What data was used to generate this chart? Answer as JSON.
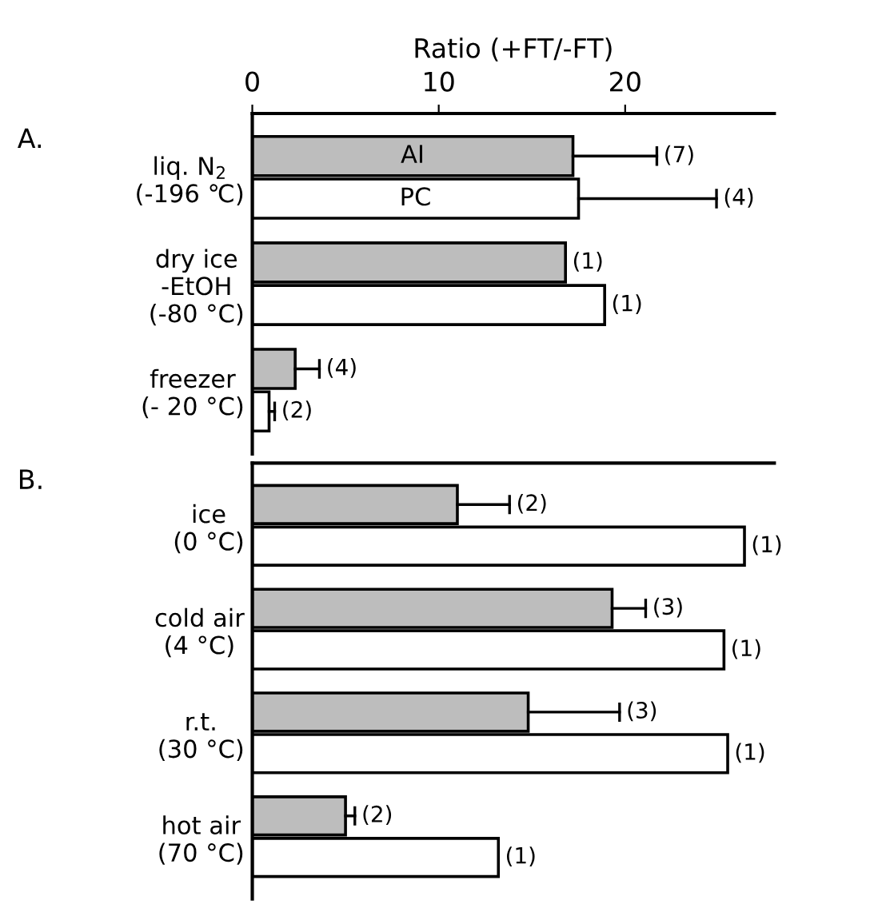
{
  "chart_data": [
    {
      "type": "bar",
      "orientation": "horizontal",
      "title": "A.",
      "xlabel": "Ratio (+FT/-FT)",
      "categories": [
        "liq. N$_{2}$\n(-196 ℃)",
        "dry ice\n-EtOH\n(-80 °C)",
        "freezer\n(- 20 °C)"
      ],
      "series": [
        {
          "name": "AI",
          "color": "#bdbdbd",
          "values": [
            17.2,
            16.8,
            2.3
          ],
          "errors": [
            [
              17.2,
              21.7
            ],
            null,
            [
              2.3,
              3.6
            ]
          ]
        },
        {
          "name": "PC",
          "color": "#ffffff",
          "values": [
            17.5,
            18.9,
            0.9
          ],
          "errors": [
            [
              17.5,
              24.9
            ],
            null,
            [
              0.9,
              1.2
            ]
          ]
        }
      ],
      "annotations": [
        "(7)",
        "(4)",
        "(1)",
        "(1)",
        "(4)",
        "(2)"
      ],
      "xlim": [
        0,
        28
      ],
      "xticks": [
        0,
        10,
        20
      ],
      "grid": false,
      "legend": false
    },
    {
      "type": "bar",
      "orientation": "horizontal",
      "title": "B.",
      "categories": [
        "ice\n(0 °C)",
        "cold air\n(4 °C)",
        "r.t.\n(30 °C)",
        "hot air\n(70 °C)"
      ],
      "series": [
        {
          "color": "#bdbdbd",
          "values": [
            11.0,
            19.3,
            14.8,
            5.0
          ],
          "errors": [
            [
              11.0,
              13.8
            ],
            [
              19.3,
              21.1
            ],
            [
              14.8,
              19.7
            ],
            [
              5.0,
              5.5
            ]
          ]
        },
        {
          "color": "#ffffff",
          "values": [
            26.4,
            25.3,
            25.5,
            13.2
          ]
        }
      ],
      "annotations": [
        "(2)",
        "(1)",
        "(3)",
        "(1)",
        "(3)",
        "(1)",
        "(2)",
        "(1)"
      ],
      "xlim": [
        0,
        28
      ],
      "xticks": [
        0,
        10,
        20
      ],
      "tick_labels": "y",
      "grid": false,
      "legend": false
    }
  ]
}
